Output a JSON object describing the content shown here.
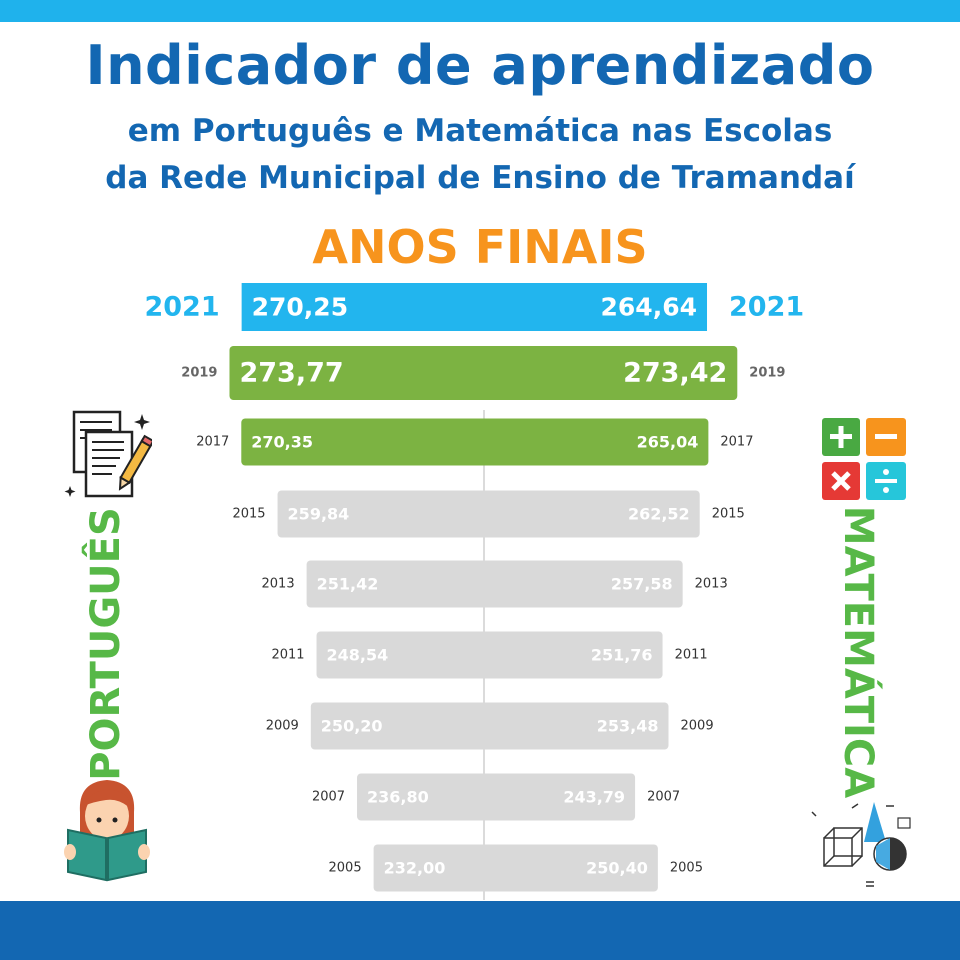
{
  "header": {
    "title": "Indicador de aprendizado",
    "subtitle_line1": "em Português e Matemática nas Escolas",
    "subtitle_line2": "da Rede Municipal de Ensino de Tramandaí",
    "section": "ANOS FINAIS"
  },
  "labels": {
    "left": "PORTUGUÊS",
    "right": "MATEMÁTICA"
  },
  "colors": {
    "top_band": "#1fb2ec",
    "bottom_band": "#1367b2",
    "title": "#1367b2",
    "section": "#f7941d",
    "side_labels": "#57b847",
    "bar_2021": "#22b5ee",
    "bar_2019_2017": "#7cb342",
    "bar_past": "#d9d9d9"
  },
  "icons": {
    "portugues_top": "document-pencil-icon",
    "portugues_bottom": "girl-reading-book-icon",
    "matematica_top": "math-operations-icon",
    "matematica_bottom": "geometry-shapes-icon"
  },
  "chart_data": {
    "type": "bar",
    "categories": [
      "2021",
      "2019",
      "2017",
      "2015",
      "2013",
      "2011",
      "2009",
      "2007",
      "2005"
    ],
    "series": [
      {
        "name": "PORTUGUÊS",
        "values": [
          270.25,
          273.77,
          270.35,
          259.84,
          251.42,
          248.54,
          250.2,
          236.8,
          232.0
        ],
        "labels": [
          "270,25",
          "273,77",
          "270,35",
          "259,84",
          "251,42",
          "248,54",
          "250,20",
          "236,80",
          "232,00"
        ]
      },
      {
        "name": "MATEMÁTICA",
        "values": [
          264.64,
          273.42,
          265.04,
          262.52,
          257.58,
          251.76,
          253.48,
          243.79,
          250.4
        ],
        "labels": [
          "264,64",
          "273,42",
          "265,04",
          "262,52",
          "257,58",
          "251,76",
          "253,48",
          "243,79",
          "250,40"
        ]
      }
    ],
    "orientation": "diverging-horizontal"
  }
}
